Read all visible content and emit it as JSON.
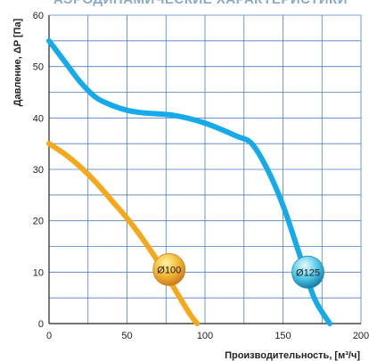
{
  "header": {
    "title": "АЭРОДИНАМИЧЕСКИЕ ХАРАКТЕРИСТИКИ"
  },
  "chart_data": {
    "type": "line",
    "xlabel": "Производительность, [м³/ч]",
    "ylabel": "Давление, ΔP [Па]",
    "xlim": [
      0,
      200
    ],
    "ylim": [
      0,
      60
    ],
    "x_ticks": [
      "0",
      "50",
      "100",
      "150",
      "200"
    ],
    "y_ticks": [
      "0",
      "10",
      "20",
      "30",
      "40",
      "50",
      "60"
    ],
    "grid": true,
    "series": [
      {
        "name": "Ø100",
        "color": "#f5a81c",
        "label_color": "#e8a52a",
        "x": [
          0,
          10,
          20,
          30,
          40,
          50,
          60,
          70,
          80,
          90,
          95
        ],
        "y": [
          35,
          33,
          30.5,
          27.5,
          24,
          20.5,
          16.5,
          12,
          7,
          2,
          0
        ]
      },
      {
        "name": "Ø125",
        "color": "#16abe8",
        "label_color": "#1aa6cc",
        "x": [
          0,
          10,
          20,
          30,
          40,
          50,
          60,
          80,
          100,
          120,
          130,
          140,
          150,
          160,
          170,
          180
        ],
        "y": [
          55,
          51,
          47,
          44,
          42.5,
          41.5,
          41,
          40.5,
          39,
          36.5,
          35,
          30,
          23,
          14,
          5,
          0
        ]
      }
    ],
    "annotations": [
      {
        "series": "Ø100",
        "x": 77,
        "y": 10.5
      },
      {
        "series": "Ø125",
        "x": 166,
        "y": 10
      }
    ]
  }
}
